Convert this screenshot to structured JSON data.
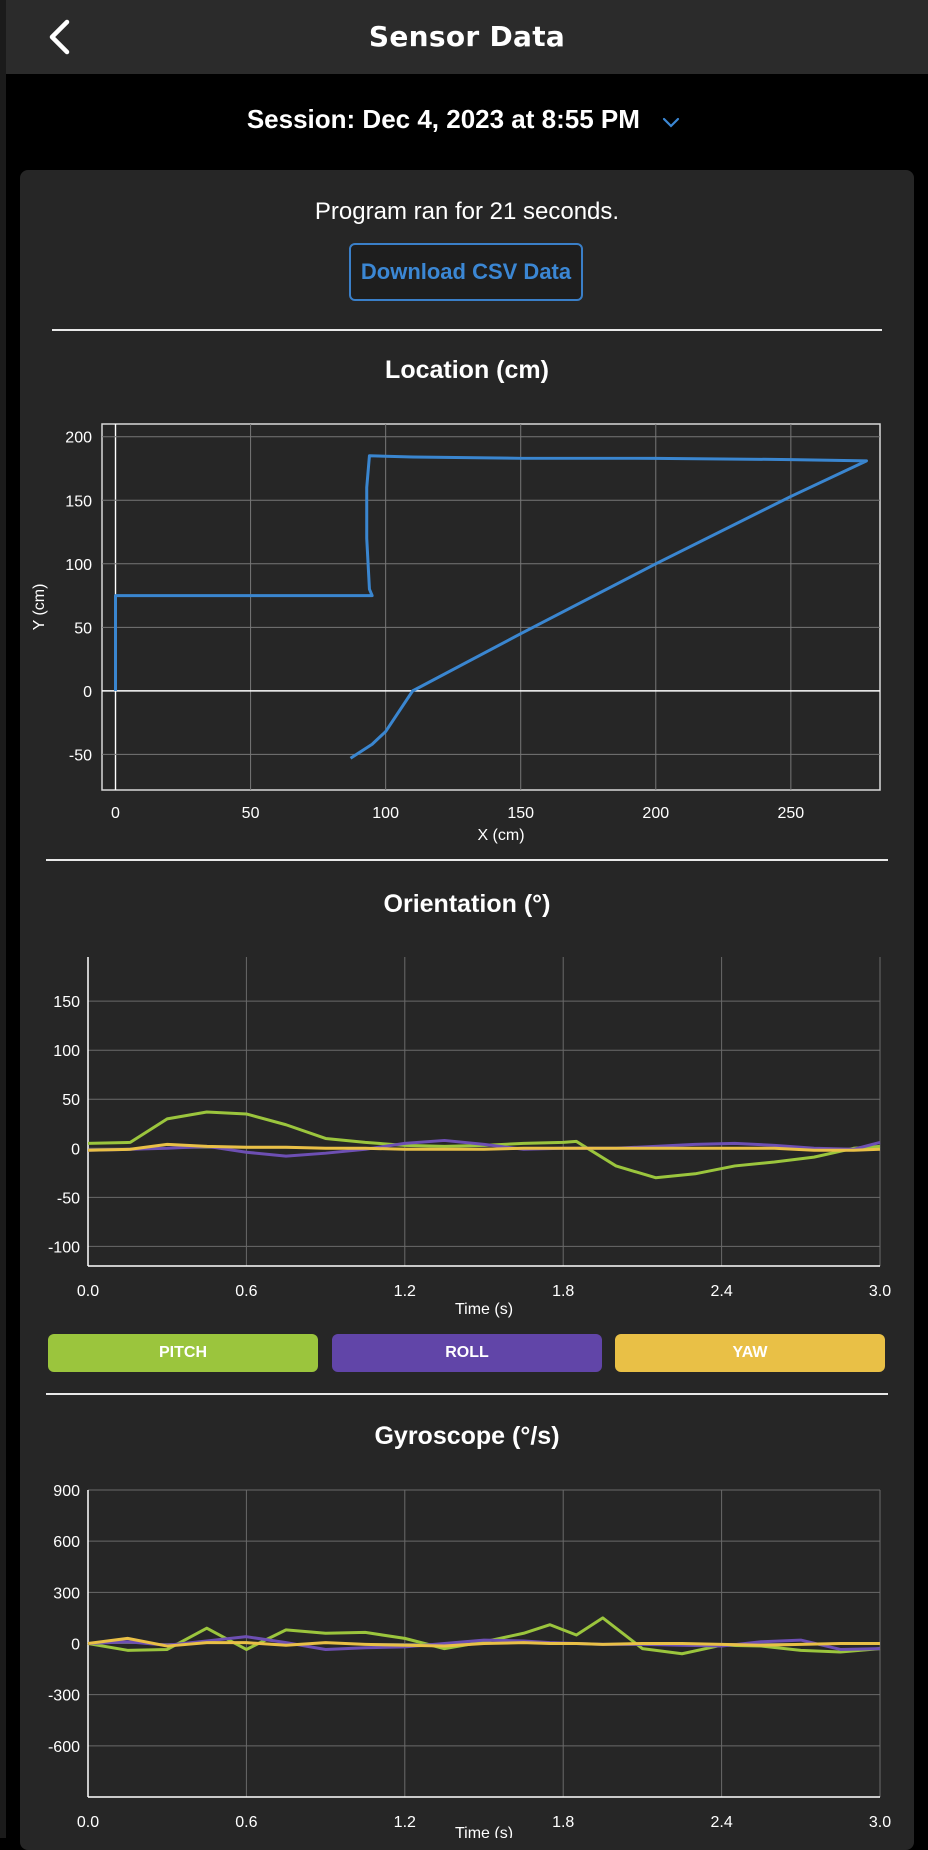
{
  "nav": {
    "title": "Sensor Data"
  },
  "session": {
    "label": "Session: Dec 4, 2023 at 8:55 PM"
  },
  "summary": {
    "ran_for": "Program ran for 21 seconds.",
    "download_label": "Download CSV Data"
  },
  "sections": {
    "location": "Location (cm)",
    "orientation": "Orientation (°)",
    "gyroscope": "Gyroscope (°/s)"
  },
  "legend": [
    {
      "label": "PITCH",
      "color": "#9bc53d"
    },
    {
      "label": "ROLL",
      "color": "#6145a8"
    },
    {
      "label": "YAW",
      "color": "#e9c046"
    }
  ],
  "colors": {
    "accent": "#3b87d4",
    "pitch": "#9bc53d",
    "roll": "#6d4fb3",
    "yaw": "#e9c046",
    "path": "#3a86d0"
  },
  "chart_data": [
    {
      "type": "line",
      "title": "Location (cm)",
      "xlabel": "X (cm)",
      "ylabel": "Y (cm)",
      "xlim": [
        -5,
        283
      ],
      "ylim": [
        -78,
        210
      ],
      "xticks": [
        0,
        50,
        100,
        150,
        200,
        250
      ],
      "yticks": [
        -50,
        0,
        50,
        100,
        150,
        200
      ],
      "grid": true,
      "series": [
        {
          "x": [
            0,
            0,
            0,
            8,
            40,
            80,
            95,
            94,
            93,
            93,
            94,
            110,
            150,
            200,
            250,
            278,
            250,
            200,
            150,
            110,
            100,
            95,
            87
          ],
          "y": [
            0,
            50,
            75,
            75,
            75,
            75,
            75,
            80,
            120,
            160,
            185,
            184,
            183,
            183,
            182,
            181,
            153,
            100,
            45,
            0,
            -32,
            -42,
            -53
          ]
        }
      ]
    },
    {
      "type": "line",
      "title": "Orientation (°)",
      "xlabel": "Time (s)",
      "xlim": [
        0,
        3.0
      ],
      "ylim": [
        -120,
        195
      ],
      "xticks": [
        "0.0",
        "0.6",
        "1.2",
        "1.8",
        "2.4",
        "3.0"
      ],
      "yticks": [
        -100,
        -50,
        0,
        50,
        100,
        150
      ],
      "grid": true,
      "x": [
        0,
        0.16,
        0.3,
        0.45,
        0.6,
        0.75,
        0.9,
        1.05,
        1.2,
        1.35,
        1.5,
        1.65,
        1.8,
        1.85,
        2.0,
        2.15,
        2.3,
        2.45,
        2.6,
        2.75,
        2.9,
        3.0
      ],
      "series": [
        {
          "name": "PITCH",
          "values": [
            5,
            6,
            30,
            37,
            35,
            24,
            10,
            6,
            3,
            2,
            3,
            5,
            6,
            7,
            -18,
            -30,
            -26,
            -18,
            -14,
            -9,
            0,
            2
          ]
        },
        {
          "name": "ROLL",
          "values": [
            -2,
            -1,
            0,
            2,
            -4,
            -8,
            -5,
            -1,
            5,
            8,
            4,
            -1,
            0,
            0,
            0,
            2,
            4,
            5,
            3,
            0,
            -1,
            6
          ]
        },
        {
          "name": "YAW",
          "values": [
            -2,
            -1,
            4,
            2,
            1,
            1,
            0,
            0,
            -1,
            -1,
            -1,
            0,
            0,
            0,
            0,
            0,
            0,
            0,
            0,
            -2,
            -2,
            -1
          ]
        }
      ]
    },
    {
      "type": "line",
      "title": "Gyroscope (°/s)",
      "xlabel": "Time (s)",
      "xlim": [
        0,
        3.0
      ],
      "ylim": [
        -900,
        900
      ],
      "xticks": [
        "0.0",
        "0.6",
        "1.2",
        "1.8",
        "2.4",
        "3.0"
      ],
      "yticks": [
        -600,
        -300,
        0,
        300,
        600,
        900
      ],
      "grid": true,
      "x": [
        0,
        0.15,
        0.3,
        0.45,
        0.6,
        0.75,
        0.9,
        1.05,
        1.2,
        1.35,
        1.5,
        1.65,
        1.75,
        1.85,
        1.95,
        2.1,
        2.25,
        2.4,
        2.55,
        2.7,
        2.85,
        3.0
      ],
      "series": [
        {
          "name": "PITCH",
          "values": [
            0,
            -40,
            -35,
            90,
            -35,
            80,
            60,
            65,
            30,
            -30,
            10,
            60,
            110,
            50,
            150,
            -30,
            -60,
            -10,
            -15,
            -40,
            -50,
            -30
          ]
        },
        {
          "name": "ROLL",
          "values": [
            0,
            10,
            -10,
            15,
            40,
            5,
            -35,
            -25,
            -20,
            0,
            20,
            15,
            5,
            0,
            -5,
            -5,
            -10,
            -15,
            10,
            20,
            -35,
            -30
          ]
        },
        {
          "name": "YAW",
          "values": [
            0,
            30,
            -15,
            5,
            5,
            -10,
            5,
            -5,
            -10,
            -15,
            0,
            5,
            0,
            0,
            -5,
            0,
            0,
            -5,
            -10,
            -5,
            0,
            0
          ]
        }
      ]
    }
  ]
}
